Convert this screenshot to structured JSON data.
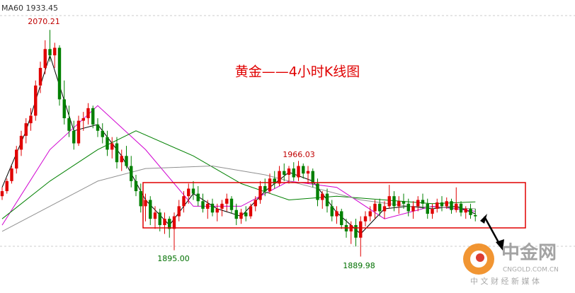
{
  "chart_data": {
    "type": "candlestick",
    "title": "黄金——4小时K线图",
    "indicator_label": "MA60 1933.45",
    "ylim": [
      1861,
      2094
    ],
    "up_color": "#e00000",
    "down_color": "#008000",
    "annotations": [
      "2070.21",
      "1966.03",
      "1895.00",
      "1889.98"
    ],
    "watermark": {
      "name": "中金网",
      "site": "CNGOLD.COM.CN",
      "slogan": "中 文 财 经 新 媒 体"
    },
    "candles": [
      [
        1938,
        1945,
        1935,
        1942
      ],
      [
        1942,
        1952,
        1940,
        1950
      ],
      [
        1950,
        1962,
        1948,
        1960
      ],
      [
        1960,
        1978,
        1956,
        1975
      ],
      [
        1975,
        1990,
        1970,
        1986
      ],
      [
        1986,
        2000,
        1980,
        1996
      ],
      [
        1996,
        2008,
        1990,
        2002
      ],
      [
        2002,
        2030,
        1998,
        2026
      ],
      [
        2026,
        2045,
        2020,
        2040
      ],
      [
        2040,
        2062,
        2035,
        2055
      ],
      [
        2055,
        2070.21,
        2045,
        2050
      ],
      [
        2050,
        2060,
        2040,
        2056
      ],
      [
        2056,
        2058,
        2010,
        2015
      ],
      [
        2015,
        2030,
        1995,
        2000
      ],
      [
        2000,
        2010,
        1985,
        1990
      ],
      [
        1990,
        1998,
        1975,
        1980
      ],
      [
        1980,
        2002,
        1978,
        1998
      ],
      [
        1998,
        2005,
        1990,
        2000
      ],
      [
        2000,
        2012,
        1995,
        2008
      ],
      [
        2008,
        2010,
        1992,
        1995
      ],
      [
        1995,
        2000,
        1985,
        1990
      ],
      [
        1990,
        1996,
        1980,
        1985
      ],
      [
        1985,
        1990,
        1970,
        1975
      ],
      [
        1975,
        1985,
        1968,
        1980
      ],
      [
        1980,
        1985,
        1960,
        1965
      ],
      [
        1965,
        1975,
        1958,
        1970
      ],
      [
        1970,
        1978,
        1960,
        1962
      ],
      [
        1962,
        1970,
        1945,
        1950
      ],
      [
        1950,
        1955,
        1938,
        1942
      ],
      [
        1942,
        1948,
        1925,
        1930
      ],
      [
        1930,
        1940,
        1918,
        1935
      ],
      [
        1935,
        1938,
        1915,
        1920
      ],
      [
        1920,
        1930,
        1912,
        1925
      ],
      [
        1925,
        1928,
        1910,
        1915
      ],
      [
        1915,
        1925,
        1908,
        1920
      ],
      [
        1920,
        1922,
        1905,
        1912
      ],
      [
        1912,
        1925,
        1895,
        1922
      ],
      [
        1922,
        1935,
        1918,
        1930
      ],
      [
        1930,
        1942,
        1925,
        1938
      ],
      [
        1938,
        1948,
        1932,
        1944
      ],
      [
        1944,
        1950,
        1935,
        1940
      ],
      [
        1940,
        1946,
        1930,
        1934
      ],
      [
        1934,
        1940,
        1925,
        1928
      ],
      [
        1928,
        1935,
        1920,
        1932
      ],
      [
        1932,
        1936,
        1922,
        1925
      ],
      [
        1925,
        1932,
        1918,
        1928
      ],
      [
        1928,
        1935,
        1922,
        1932
      ],
      [
        1932,
        1940,
        1926,
        1936
      ],
      [
        1936,
        1938,
        1924,
        1927
      ],
      [
        1927,
        1932,
        1915,
        1920
      ],
      [
        1920,
        1928,
        1916,
        1925
      ],
      [
        1925,
        1930,
        1918,
        1922
      ],
      [
        1922,
        1932,
        1920,
        1930
      ],
      [
        1930,
        1938,
        1926,
        1935
      ],
      [
        1935,
        1950,
        1932,
        1946
      ],
      [
        1946,
        1952,
        1938,
        1942
      ],
      [
        1942,
        1956,
        1940,
        1952
      ],
      [
        1952,
        1958,
        1944,
        1948
      ],
      [
        1948,
        1962,
        1946,
        1958
      ],
      [
        1958,
        1964,
        1950,
        1955
      ],
      [
        1955,
        1962,
        1948,
        1960
      ],
      [
        1960,
        1965,
        1950,
        1953
      ],
      [
        1953,
        1966.03,
        1950,
        1962
      ],
      [
        1962,
        1964,
        1952,
        1956
      ],
      [
        1956,
        1962,
        1948,
        1958
      ],
      [
        1958,
        1960,
        1945,
        1948
      ],
      [
        1948,
        1952,
        1930,
        1935
      ],
      [
        1935,
        1942,
        1928,
        1940
      ],
      [
        1940,
        1944,
        1925,
        1930
      ],
      [
        1930,
        1935,
        1918,
        1922
      ],
      [
        1922,
        1930,
        1916,
        1926
      ],
      [
        1926,
        1928,
        1912,
        1915
      ],
      [
        1915,
        1920,
        1905,
        1910
      ],
      [
        1910,
        1918,
        1900,
        1915
      ],
      [
        1915,
        1920,
        1898,
        1905
      ],
      [
        1905,
        1922,
        1889.98,
        1918
      ],
      [
        1918,
        1926,
        1914,
        1922
      ],
      [
        1922,
        1930,
        1918,
        1926
      ],
      [
        1926,
        1935,
        1920,
        1932
      ],
      [
        1932,
        1936,
        1922,
        1926
      ],
      [
        1926,
        1934,
        1920,
        1930
      ],
      [
        1930,
        1947,
        1928,
        1938
      ],
      [
        1938,
        1942,
        1926,
        1930
      ],
      [
        1930,
        1938,
        1924,
        1934
      ],
      [
        1934,
        1940,
        1928,
        1932
      ],
      [
        1932,
        1936,
        1922,
        1926
      ],
      [
        1926,
        1934,
        1920,
        1930
      ],
      [
        1930,
        1938,
        1926,
        1935
      ],
      [
        1935,
        1940,
        1928,
        1932
      ],
      [
        1932,
        1936,
        1920,
        1924
      ],
      [
        1924,
        1932,
        1920,
        1928
      ],
      [
        1928,
        1936,
        1925,
        1933
      ],
      [
        1933,
        1938,
        1926,
        1930
      ],
      [
        1930,
        1937,
        1928,
        1934
      ],
      [
        1934,
        1936,
        1924,
        1927
      ],
      [
        1927,
        1945,
        1925,
        1932
      ],
      [
        1932,
        1934,
        1922,
        1925
      ],
      [
        1925,
        1930,
        1920,
        1928
      ],
      [
        1928,
        1932,
        1920,
        1923
      ],
      [
        1923,
        1928,
        1918,
        1922
      ]
    ],
    "ma_lines": [
      {
        "color": "#000000",
        "x": [
          0,
          5,
          10,
          15,
          20,
          25,
          30,
          35,
          40,
          45,
          50,
          55,
          60,
          65,
          70,
          75,
          80,
          85,
          90,
          95,
          99
        ],
        "values": [
          1945,
          1990,
          2050,
          1990,
          1995,
          1970,
          1935,
          1915,
          1940,
          1928,
          1922,
          1942,
          1957,
          1950,
          1925,
          1908,
          1928,
          1930,
          1928,
          1930,
          1924
        ]
      },
      {
        "color": "#d000d0",
        "x": [
          0,
          10,
          20,
          30,
          40,
          50,
          60,
          70,
          80,
          90,
          99
        ],
        "values": [
          1915,
          1975,
          2010,
          1975,
          1930,
          1930,
          1950,
          1945,
          1920,
          1930,
          1926
        ]
      },
      {
        "color": "#008000",
        "x": [
          0,
          10,
          20,
          28,
          40,
          50,
          60,
          70,
          80,
          90,
          99
        ],
        "values": [
          1920,
          1950,
          1975,
          1990,
          1970,
          1948,
          1935,
          1938,
          1935,
          1932,
          1933.45
        ]
      },
      {
        "color": "#909090",
        "x": [
          0,
          10,
          20,
          30,
          44,
          55,
          65,
          75,
          85,
          99
        ],
        "values": [
          1910,
          1930,
          1950,
          1960,
          1962,
          1955,
          1945,
          1935,
          1930,
          1928
        ]
      }
    ]
  }
}
